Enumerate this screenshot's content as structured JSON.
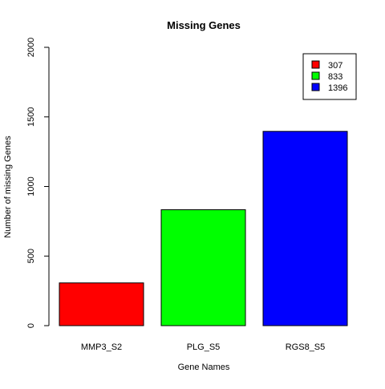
{
  "chart_data": {
    "type": "bar",
    "title": "Missing Genes",
    "xlabel": "Gene Names",
    "ylabel": "Number of missing Genes",
    "categories": [
      "MMP3_S2",
      "PLG_S5",
      "RGS8_S5"
    ],
    "values": [
      307,
      833,
      1396
    ],
    "colors": [
      "#ff0000",
      "#00ff00",
      "#0000ff"
    ],
    "ylim": [
      0,
      2000
    ],
    "yticks": [
      0,
      500,
      1000,
      1500,
      2000
    ],
    "grid": false,
    "legend": {
      "position": "top-right",
      "entries": [
        "307",
        "833",
        "1396"
      ]
    }
  }
}
